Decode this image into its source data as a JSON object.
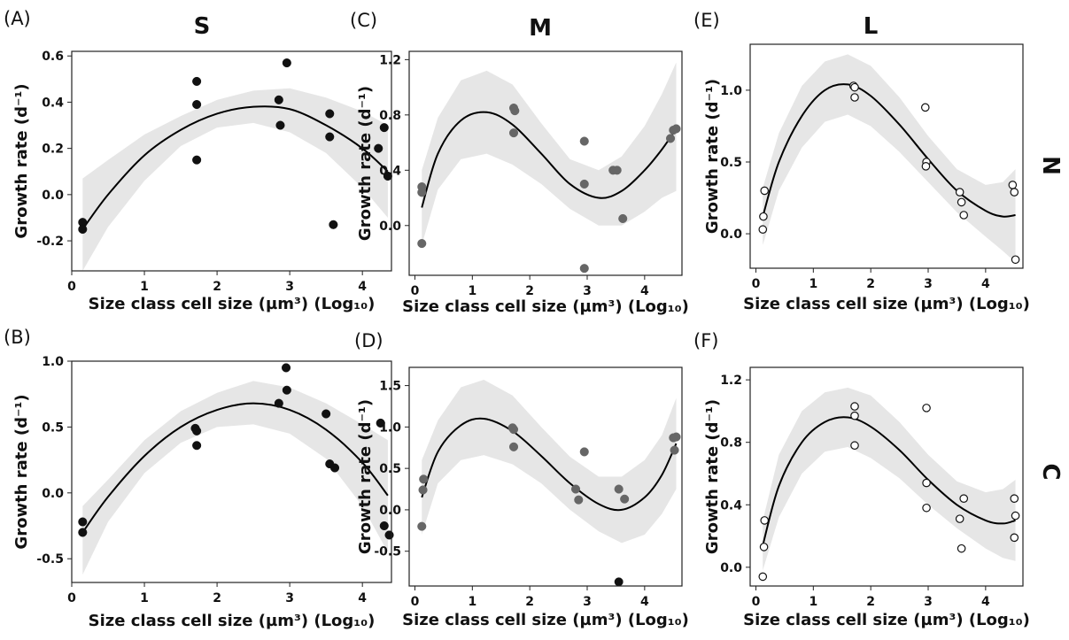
{
  "figure": {
    "column_titles": [
      "S",
      "M",
      "L"
    ],
    "row_labels": [
      "N",
      "C"
    ]
  },
  "chart_data": [
    {
      "panel": "(A)",
      "type": "scatter",
      "xlabel": "Size class cell size (µm³) (Log₁₀)",
      "ylabel": "Growth rate (d⁻¹)",
      "xlim": [
        0,
        4.4
      ],
      "ylim": [
        -0.33,
        0.62
      ],
      "xticks": [
        0,
        1,
        2,
        3,
        4
      ],
      "yticks": [
        -0.2,
        0.0,
        0.2,
        0.4,
        0.6
      ],
      "ytick_labels": [
        "-0.2",
        "0.0",
        "0.2",
        "0.4",
        "0.6"
      ],
      "marker": "filled",
      "marker_color": "#111111",
      "points": [
        [
          0.15,
          -0.12
        ],
        [
          0.15,
          -0.15
        ],
        [
          1.72,
          0.49
        ],
        [
          1.72,
          0.39
        ],
        [
          1.72,
          0.15
        ],
        [
          2.85,
          0.41
        ],
        [
          2.87,
          0.3
        ],
        [
          2.96,
          0.57
        ],
        [
          3.55,
          0.35
        ],
        [
          3.55,
          0.25
        ],
        [
          3.6,
          -0.13
        ],
        [
          4.22,
          0.2
        ],
        [
          4.3,
          0.29
        ],
        [
          4.35,
          0.08
        ]
      ],
      "fit": [
        [
          0.15,
          -0.15
        ],
        [
          0.5,
          0.0
        ],
        [
          1.0,
          0.17
        ],
        [
          1.5,
          0.28
        ],
        [
          2.0,
          0.35
        ],
        [
          2.5,
          0.38
        ],
        [
          3.0,
          0.37
        ],
        [
          3.5,
          0.3
        ],
        [
          4.0,
          0.2
        ],
        [
          4.35,
          0.1
        ]
      ],
      "band_upper": [
        [
          0.15,
          0.07
        ],
        [
          0.5,
          0.15
        ],
        [
          1.0,
          0.26
        ],
        [
          1.5,
          0.34
        ],
        [
          2.0,
          0.41
        ],
        [
          2.5,
          0.45
        ],
        [
          3.0,
          0.46
        ],
        [
          3.5,
          0.42
        ],
        [
          4.0,
          0.36
        ],
        [
          4.35,
          0.3
        ]
      ],
      "band_lower": [
        [
          0.15,
          -0.33
        ],
        [
          0.5,
          -0.14
        ],
        [
          1.0,
          0.06
        ],
        [
          1.5,
          0.21
        ],
        [
          2.0,
          0.29
        ],
        [
          2.5,
          0.31
        ],
        [
          3.0,
          0.27
        ],
        [
          3.5,
          0.18
        ],
        [
          4.0,
          0.03
        ],
        [
          4.35,
          -0.1
        ]
      ]
    },
    {
      "panel": "(B)",
      "type": "scatter",
      "xlabel": "Size class cell size (µm³) (Log₁₀)",
      "ylabel": "Growth rate (d⁻¹)",
      "xlim": [
        0,
        4.4
      ],
      "ylim": [
        -0.68,
        1.0
      ],
      "xticks": [
        0,
        1,
        2,
        3,
        4
      ],
      "yticks": [
        -0.5,
        0.0,
        0.5,
        1.0
      ],
      "ytick_labels": [
        "-0.5",
        "0.0",
        "0.5",
        "1.0"
      ],
      "marker": "filled",
      "marker_color": "#111111",
      "points": [
        [
          0.15,
          -0.22
        ],
        [
          0.15,
          -0.3
        ],
        [
          1.7,
          0.49
        ],
        [
          1.72,
          0.47
        ],
        [
          1.72,
          0.36
        ],
        [
          2.85,
          0.68
        ],
        [
          2.95,
          0.95
        ],
        [
          2.96,
          0.78
        ],
        [
          3.5,
          0.6
        ],
        [
          3.55,
          0.22
        ],
        [
          3.62,
          0.19
        ],
        [
          4.25,
          0.53
        ],
        [
          4.3,
          -0.25
        ],
        [
          4.37,
          -0.32
        ]
      ],
      "fit": [
        [
          0.15,
          -0.3
        ],
        [
          0.5,
          -0.03
        ],
        [
          1.0,
          0.28
        ],
        [
          1.5,
          0.5
        ],
        [
          2.0,
          0.63
        ],
        [
          2.5,
          0.68
        ],
        [
          3.0,
          0.63
        ],
        [
          3.5,
          0.48
        ],
        [
          4.0,
          0.23
        ],
        [
          4.35,
          -0.02
        ]
      ],
      "band_upper": [
        [
          0.15,
          -0.1
        ],
        [
          0.5,
          0.1
        ],
        [
          1.0,
          0.4
        ],
        [
          1.5,
          0.62
        ],
        [
          2.0,
          0.76
        ],
        [
          2.5,
          0.85
        ],
        [
          3.0,
          0.8
        ],
        [
          3.5,
          0.68
        ],
        [
          4.0,
          0.52
        ],
        [
          4.35,
          0.4
        ]
      ],
      "band_lower": [
        [
          0.15,
          -0.62
        ],
        [
          0.5,
          -0.22
        ],
        [
          1.0,
          0.15
        ],
        [
          1.5,
          0.38
        ],
        [
          2.0,
          0.5
        ],
        [
          2.5,
          0.52
        ],
        [
          3.0,
          0.45
        ],
        [
          3.5,
          0.26
        ],
        [
          4.0,
          -0.1
        ],
        [
          4.35,
          -0.45
        ]
      ]
    },
    {
      "panel": "(C)",
      "type": "scatter",
      "xlabel": "Size class cell size (µm³) (Log₁₀)",
      "ylabel": "Growth rate (d⁻¹)",
      "xlim": [
        -0.1,
        4.65
      ],
      "ylim": [
        -0.36,
        1.26
      ],
      "xticks": [
        0,
        1,
        2,
        3,
        4
      ],
      "yticks": [
        0.0,
        0.4,
        0.8,
        1.2
      ],
      "ytick_labels": [
        "0.0",
        "0.4",
        "0.8",
        "1.2"
      ],
      "marker": "filled",
      "marker_color": "#666666",
      "points": [
        [
          0.12,
          0.28
        ],
        [
          0.12,
          0.24
        ],
        [
          0.12,
          -0.13
        ],
        [
          1.72,
          0.85
        ],
        [
          1.74,
          0.83
        ],
        [
          1.72,
          0.67
        ],
        [
          2.95,
          0.61
        ],
        [
          2.95,
          0.3
        ],
        [
          2.95,
          -0.31
        ],
        [
          3.45,
          0.4
        ],
        [
          3.52,
          0.4
        ],
        [
          3.62,
          0.05
        ],
        [
          4.45,
          0.63
        ],
        [
          4.5,
          0.69
        ],
        [
          4.55,
          0.7
        ]
      ],
      "fit": [
        [
          0.12,
          0.13
        ],
        [
          0.4,
          0.52
        ],
        [
          0.8,
          0.76
        ],
        [
          1.25,
          0.82
        ],
        [
          1.7,
          0.73
        ],
        [
          2.2,
          0.52
        ],
        [
          2.7,
          0.3
        ],
        [
          3.2,
          0.2
        ],
        [
          3.6,
          0.25
        ],
        [
          4.0,
          0.4
        ],
        [
          4.3,
          0.55
        ],
        [
          4.55,
          0.7
        ]
      ],
      "band_upper": [
        [
          0.12,
          0.4
        ],
        [
          0.4,
          0.78
        ],
        [
          0.8,
          1.05
        ],
        [
          1.25,
          1.12
        ],
        [
          1.7,
          1.02
        ],
        [
          2.2,
          0.74
        ],
        [
          2.7,
          0.48
        ],
        [
          3.2,
          0.4
        ],
        [
          3.6,
          0.5
        ],
        [
          4.0,
          0.72
        ],
        [
          4.3,
          0.95
        ],
        [
          4.55,
          1.18
        ]
      ],
      "band_lower": [
        [
          0.12,
          -0.14
        ],
        [
          0.4,
          0.26
        ],
        [
          0.8,
          0.48
        ],
        [
          1.25,
          0.52
        ],
        [
          1.7,
          0.44
        ],
        [
          2.2,
          0.3
        ],
        [
          2.7,
          0.12
        ],
        [
          3.2,
          0.0
        ],
        [
          3.6,
          0.0
        ],
        [
          4.0,
          0.1
        ],
        [
          4.3,
          0.2
        ],
        [
          4.55,
          0.25
        ]
      ]
    },
    {
      "panel": "(D)",
      "type": "scatter",
      "xlabel": "Size class cell size (µm³) (Log₁₀)",
      "ylabel": "Growth rate (d⁻¹)",
      "xlim": [
        -0.1,
        4.65
      ],
      "ylim": [
        -0.92,
        1.72
      ],
      "xticks": [
        0,
        1,
        2,
        3,
        4
      ],
      "yticks": [
        -0.5,
        0.0,
        0.5,
        1.0,
        1.5
      ],
      "ytick_labels": [
        "-0.5",
        "0.0",
        "0.5",
        "1.0",
        "1.5"
      ],
      "marker": "filled",
      "marker_color": "#666666",
      "points": [
        [
          0.15,
          0.37
        ],
        [
          0.14,
          0.24
        ],
        [
          0.12,
          -0.2
        ],
        [
          1.7,
          0.99
        ],
        [
          1.72,
          0.97
        ],
        [
          1.72,
          0.76
        ],
        [
          2.8,
          0.25
        ],
        [
          2.85,
          0.12
        ],
        [
          2.95,
          0.7
        ],
        [
          3.55,
          0.25
        ],
        [
          3.65,
          0.13
        ],
        [
          3.55,
          -0.87
        ],
        [
          4.5,
          0.87
        ],
        [
          4.55,
          0.88
        ],
        [
          4.52,
          0.72
        ]
      ],
      "fit": [
        [
          0.12,
          0.15
        ],
        [
          0.4,
          0.7
        ],
        [
          0.8,
          1.02
        ],
        [
          1.2,
          1.1
        ],
        [
          1.7,
          0.95
        ],
        [
          2.2,
          0.65
        ],
        [
          2.7,
          0.32
        ],
        [
          3.2,
          0.07
        ],
        [
          3.6,
          0.0
        ],
        [
          4.0,
          0.15
        ],
        [
          4.3,
          0.42
        ],
        [
          4.55,
          0.8
        ]
      ],
      "band_upper": [
        [
          0.12,
          0.6
        ],
        [
          0.4,
          1.08
        ],
        [
          0.8,
          1.48
        ],
        [
          1.2,
          1.57
        ],
        [
          1.7,
          1.38
        ],
        [
          2.2,
          1.0
        ],
        [
          2.7,
          0.64
        ],
        [
          3.2,
          0.4
        ],
        [
          3.6,
          0.4
        ],
        [
          4.0,
          0.6
        ],
        [
          4.3,
          0.9
        ],
        [
          4.55,
          1.35
        ]
      ],
      "band_lower": [
        [
          0.12,
          -0.3
        ],
        [
          0.4,
          0.32
        ],
        [
          0.8,
          0.6
        ],
        [
          1.2,
          0.66
        ],
        [
          1.7,
          0.55
        ],
        [
          2.2,
          0.32
        ],
        [
          2.7,
          0.0
        ],
        [
          3.2,
          -0.26
        ],
        [
          3.6,
          -0.4
        ],
        [
          4.0,
          -0.3
        ],
        [
          4.3,
          -0.05
        ],
        [
          4.55,
          0.25
        ]
      ]
    },
    {
      "panel": "(E)",
      "type": "scatter",
      "xlabel": "Size class cell size (µm³) (Log₁₀)",
      "ylabel": "Growth rate (d⁻¹)",
      "xlim": [
        -0.1,
        4.65
      ],
      "ylim": [
        -0.24,
        1.32
      ],
      "xticks": [
        0,
        1,
        2,
        3,
        4
      ],
      "yticks": [
        0.0,
        0.5,
        1.0
      ],
      "ytick_labels": [
        "0.0",
        "0.5",
        "1.0"
      ],
      "marker": "open",
      "marker_color": "#111111",
      "points": [
        [
          0.15,
          0.3
        ],
        [
          0.13,
          0.12
        ],
        [
          0.12,
          0.03
        ],
        [
          1.7,
          1.03
        ],
        [
          1.72,
          1.02
        ],
        [
          1.72,
          0.95
        ],
        [
          2.95,
          0.88
        ],
        [
          2.97,
          0.5
        ],
        [
          2.96,
          0.47
        ],
        [
          3.55,
          0.29
        ],
        [
          3.58,
          0.22
        ],
        [
          3.62,
          0.13
        ],
        [
          4.47,
          0.34
        ],
        [
          4.5,
          0.29
        ],
        [
          4.52,
          -0.18
        ]
      ],
      "fit": [
        [
          0.12,
          0.12
        ],
        [
          0.4,
          0.5
        ],
        [
          0.8,
          0.82
        ],
        [
          1.2,
          1.0
        ],
        [
          1.6,
          1.04
        ],
        [
          2.0,
          0.96
        ],
        [
          2.5,
          0.76
        ],
        [
          3.0,
          0.52
        ],
        [
          3.5,
          0.3
        ],
        [
          4.0,
          0.16
        ],
        [
          4.3,
          0.12
        ],
        [
          4.52,
          0.13
        ]
      ],
      "band_upper": [
        [
          0.12,
          0.32
        ],
        [
          0.4,
          0.7
        ],
        [
          0.8,
          1.03
        ],
        [
          1.2,
          1.2
        ],
        [
          1.6,
          1.25
        ],
        [
          2.0,
          1.17
        ],
        [
          2.5,
          0.95
        ],
        [
          3.0,
          0.68
        ],
        [
          3.5,
          0.45
        ],
        [
          4.0,
          0.34
        ],
        [
          4.3,
          0.36
        ],
        [
          4.52,
          0.45
        ]
      ],
      "band_lower": [
        [
          0.12,
          -0.08
        ],
        [
          0.4,
          0.3
        ],
        [
          0.8,
          0.6
        ],
        [
          1.2,
          0.78
        ],
        [
          1.6,
          0.83
        ],
        [
          2.0,
          0.75
        ],
        [
          2.5,
          0.57
        ],
        [
          3.0,
          0.36
        ],
        [
          3.5,
          0.15
        ],
        [
          4.0,
          -0.02
        ],
        [
          4.3,
          -0.12
        ],
        [
          4.52,
          -0.2
        ]
      ]
    },
    {
      "panel": "(F)",
      "type": "scatter",
      "xlabel": "Size class cell size (µm³) (Log₁₀)",
      "ylabel": "Growth rate (d⁻¹)",
      "xlim": [
        -0.1,
        4.65
      ],
      "ylim": [
        -0.12,
        1.28
      ],
      "xticks": [
        0,
        1,
        2,
        3,
        4
      ],
      "yticks": [
        0.0,
        0.4,
        0.8,
        1.2
      ],
      "ytick_labels": [
        "0.0",
        "0.4",
        "0.8",
        "1.2"
      ],
      "marker": "open",
      "marker_color": "#111111",
      "points": [
        [
          0.15,
          0.3
        ],
        [
          0.14,
          0.13
        ],
        [
          0.12,
          -0.06
        ],
        [
          1.72,
          1.03
        ],
        [
          1.72,
          0.97
        ],
        [
          1.72,
          0.78
        ],
        [
          2.97,
          1.02
        ],
        [
          2.97,
          0.54
        ],
        [
          2.97,
          0.38
        ],
        [
          3.55,
          0.31
        ],
        [
          3.62,
          0.44
        ],
        [
          3.58,
          0.12
        ],
        [
          4.5,
          0.44
        ],
        [
          4.52,
          0.33
        ],
        [
          4.5,
          0.19
        ]
      ],
      "fit": [
        [
          0.12,
          0.14
        ],
        [
          0.4,
          0.52
        ],
        [
          0.8,
          0.8
        ],
        [
          1.2,
          0.93
        ],
        [
          1.6,
          0.96
        ],
        [
          2.0,
          0.9
        ],
        [
          2.5,
          0.75
        ],
        [
          3.0,
          0.56
        ],
        [
          3.5,
          0.4
        ],
        [
          4.0,
          0.3
        ],
        [
          4.3,
          0.28
        ],
        [
          4.52,
          0.3
        ]
      ],
      "band_upper": [
        [
          0.12,
          0.3
        ],
        [
          0.4,
          0.72
        ],
        [
          0.8,
          1.0
        ],
        [
          1.2,
          1.12
        ],
        [
          1.6,
          1.15
        ],
        [
          2.0,
          1.1
        ],
        [
          2.5,
          0.93
        ],
        [
          3.0,
          0.72
        ],
        [
          3.5,
          0.55
        ],
        [
          4.0,
          0.48
        ],
        [
          4.3,
          0.5
        ],
        [
          4.52,
          0.56
        ]
      ],
      "band_lower": [
        [
          0.12,
          -0.02
        ],
        [
          0.4,
          0.32
        ],
        [
          0.8,
          0.6
        ],
        [
          1.2,
          0.74
        ],
        [
          1.6,
          0.77
        ],
        [
          2.0,
          0.7
        ],
        [
          2.5,
          0.57
        ],
        [
          3.0,
          0.4
        ],
        [
          3.5,
          0.25
        ],
        [
          4.0,
          0.12
        ],
        [
          4.3,
          0.06
        ],
        [
          4.52,
          0.04
        ]
      ]
    }
  ]
}
